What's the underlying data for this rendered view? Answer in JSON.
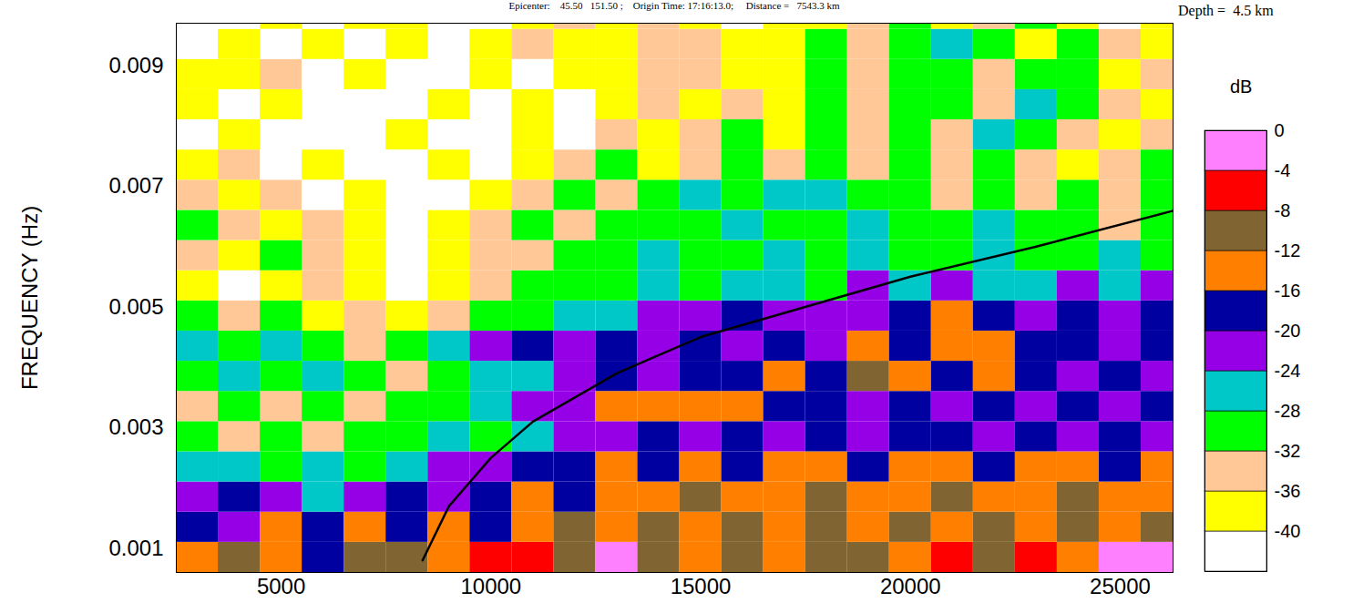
{
  "chart_data": {
    "type": "heatmap",
    "title": "Epicenter:    45.50   151.50 ;    Origin Time: 17:16:13.0;     Distance =   7543.3 km",
    "annotations": [
      "Depth =  4.5 km"
    ],
    "y_label": "FREQUENCY (Hz)",
    "xlim": [
      2500,
      26260
    ],
    "ylim": [
      0.0006,
      0.0097
    ],
    "xticks": [
      5000,
      10000,
      15000,
      20000,
      25000
    ],
    "yticks": [
      0.001,
      0.003,
      0.005,
      0.007,
      0.009
    ],
    "grid": false,
    "x_edges": [
      2500,
      3500,
      4500,
      5500,
      6500,
      7500,
      8500,
      9500,
      10500,
      11500,
      12500,
      13500,
      14500,
      15500,
      16500,
      17500,
      18500,
      19500,
      20500,
      21500,
      22500,
      23500,
      24500,
      25500,
      26500
    ],
    "y_edges": [
      0.0006,
      0.0011,
      0.0016,
      0.0021,
      0.0026,
      0.0031,
      0.0036,
      0.0041,
      0.0046,
      0.0051,
      0.0056,
      0.0061,
      0.0066,
      0.0071,
      0.0076,
      0.0081,
      0.0086,
      0.0091,
      0.0096,
      0.0101
    ],
    "cells": [
      [
        -14,
        -10,
        -14,
        -18,
        -10,
        -10,
        -14,
        -6,
        -6,
        -10,
        -2,
        -10,
        -14,
        -10,
        -14,
        -10,
        -10,
        -14,
        -6,
        -10,
        -6,
        -14,
        -2,
        -2
      ],
      [
        -18,
        -22,
        -14,
        -18,
        -14,
        -18,
        -14,
        -18,
        -14,
        -10,
        -14,
        -10,
        -14,
        -10,
        -14,
        -10,
        -14,
        -10,
        -14,
        -10,
        -14,
        -10,
        -14,
        -10
      ],
      [
        -22,
        -18,
        -22,
        -26,
        -22,
        -18,
        -22,
        -18,
        -14,
        -18,
        -14,
        -14,
        -10,
        -14,
        -14,
        -10,
        -14,
        -14,
        -10,
        -14,
        -14,
        -10,
        -14,
        -14
      ],
      [
        -26,
        -26,
        -30,
        -26,
        -30,
        -26,
        -22,
        -22,
        -18,
        -18,
        -14,
        -18,
        -14,
        -18,
        -14,
        -14,
        -18,
        -14,
        -14,
        -18,
        -14,
        -14,
        -18,
        -14
      ],
      [
        -30,
        -34,
        -30,
        -34,
        -30,
        -30,
        -26,
        -30,
        -26,
        -22,
        -22,
        -18,
        -22,
        -18,
        -22,
        -18,
        -22,
        -18,
        -18,
        -22,
        -18,
        -22,
        -18,
        -22
      ],
      [
        -34,
        -30,
        -34,
        -30,
        -34,
        -30,
        -30,
        -26,
        -22,
        -22,
        -14,
        -14,
        -14,
        -14,
        -18,
        -18,
        -22,
        -18,
        -22,
        -18,
        -22,
        -18,
        -22,
        -18
      ],
      [
        -30,
        -26,
        -30,
        -26,
        -30,
        -34,
        -30,
        -26,
        -26,
        -22,
        -18,
        -22,
        -18,
        -18,
        -14,
        -18,
        -10,
        -14,
        -18,
        -14,
        -18,
        -22,
        -18,
        -22
      ],
      [
        -26,
        -30,
        -26,
        -30,
        -34,
        -30,
        -26,
        -22,
        -18,
        -22,
        -18,
        -22,
        -18,
        -22,
        -18,
        -22,
        -14,
        -18,
        -14,
        -14,
        -18,
        -18,
        -22,
        -18
      ],
      [
        -30,
        -34,
        -30,
        -38,
        -34,
        -38,
        -34,
        -30,
        -30,
        -26,
        -26,
        -22,
        -22,
        -18,
        -22,
        -22,
        -22,
        -18,
        -14,
        -18,
        -22,
        -18,
        -22,
        -18
      ],
      [
        -38,
        -42,
        -38,
        -34,
        -38,
        -42,
        -38,
        -34,
        -30,
        -30,
        -30,
        -26,
        -30,
        -26,
        -26,
        -30,
        -22,
        -26,
        -22,
        -26,
        -26,
        -22,
        -26,
        -22
      ],
      [
        -34,
        -38,
        -30,
        -34,
        -38,
        -42,
        -38,
        -34,
        -34,
        -30,
        -30,
        -26,
        -30,
        -30,
        -26,
        -30,
        -26,
        -30,
        -30,
        -26,
        -30,
        -30,
        -26,
        -30
      ],
      [
        -30,
        -34,
        -38,
        -34,
        -38,
        -42,
        -38,
        -34,
        -30,
        -34,
        -30,
        -30,
        -30,
        -26,
        -30,
        -30,
        -26,
        -30,
        -30,
        -26,
        -30,
        -30,
        -34,
        -30
      ],
      [
        -34,
        -38,
        -34,
        -42,
        -38,
        -42,
        -42,
        -38,
        -34,
        -30,
        -34,
        -30,
        -26,
        -30,
        -26,
        -26,
        -30,
        -30,
        -34,
        -30,
        -34,
        -30,
        -34,
        -30
      ],
      [
        -38,
        -34,
        -42,
        -38,
        -42,
        -42,
        -38,
        -42,
        -38,
        -34,
        -30,
        -38,
        -34,
        -30,
        -34,
        -30,
        -34,
        -30,
        -34,
        -30,
        -34,
        -38,
        -34,
        -30
      ],
      [
        -42,
        -38,
        -42,
        -42,
        -42,
        -38,
        -42,
        -42,
        -38,
        -42,
        -34,
        -38,
        -34,
        -30,
        -38,
        -30,
        -34,
        -30,
        -34,
        -26,
        -30,
        -34,
        -38,
        -34
      ],
      [
        -38,
        -42,
        -38,
        -42,
        -42,
        -42,
        -38,
        -42,
        -38,
        -42,
        -38,
        -34,
        -38,
        -34,
        -38,
        -30,
        -34,
        -30,
        -30,
        -34,
        -26,
        -30,
        -34,
        -38
      ],
      [
        -38,
        -38,
        -34,
        -42,
        -38,
        -42,
        -42,
        -38,
        -42,
        -38,
        -38,
        -34,
        -34,
        -38,
        -38,
        -30,
        -34,
        -30,
        -30,
        -34,
        -30,
        -30,
        -38,
        -34
      ],
      [
        -42,
        -38,
        -42,
        -38,
        -42,
        -38,
        -42,
        -38,
        -34,
        -38,
        -38,
        -34,
        -34,
        -38,
        -38,
        -30,
        -34,
        -30,
        -26,
        -30,
        -38,
        -30,
        -34,
        -38
      ],
      [
        -42,
        -42,
        -38,
        -42,
        -38,
        -38,
        -42,
        -42,
        -38,
        -34,
        -38,
        -34,
        -38,
        -42,
        -38,
        -38,
        -34,
        -30,
        -38,
        -34,
        -30,
        -38,
        -42,
        -38
      ]
    ],
    "colorbar": {
      "label": "dB",
      "range": [
        -44,
        0
      ],
      "ticks": [
        0,
        -4,
        -8,
        -12,
        -16,
        -20,
        -24,
        -28,
        -32,
        -36,
        -40
      ],
      "colors": [
        "#ffffff",
        "#ffff00",
        "#ffc896",
        "#00ff00",
        "#00c8c8",
        "#9600e6",
        "#0000a0",
        "#ff8000",
        "#806432",
        "#ff0000",
        "#ff80ff"
      ]
    },
    "curve": {
      "color": "#000000",
      "x": [
        8370,
        9000,
        10000,
        11000,
        12000,
        13000,
        14000,
        15000,
        17000,
        20000,
        23000,
        26300
      ],
      "y": [
        0.0008,
        0.0017,
        0.0025,
        0.0031,
        0.0035,
        0.0039,
        0.0042,
        0.0045,
        0.0049,
        0.0055,
        0.006,
        0.0066
      ]
    }
  }
}
